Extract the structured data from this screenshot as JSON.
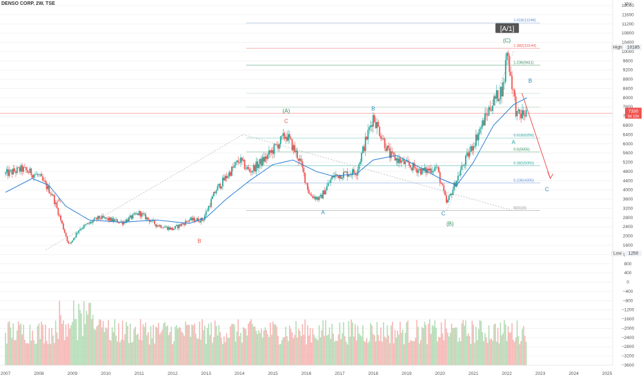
{
  "header": {
    "symbol_line": "DENSO CORP, 2W, TSE",
    "currency": "JPY"
  },
  "badges": {
    "high_label": "High",
    "high_value": "10185",
    "low_label": "Low",
    "low_value": "1250",
    "last_price": "7330",
    "last_time": "9d 10h"
  },
  "colors": {
    "up": "#26a69a",
    "down": "#ef5350",
    "ma": "#2a7fd4",
    "red": "#ef5350",
    "green": "#2e8b57",
    "blue": "#2a8cb8"
  },
  "chart_data": {
    "type": "candlestick",
    "price_axis": {
      "min": -3600,
      "max": 12000,
      "ticks": [
        12000,
        11600,
        11200,
        10800,
        10400,
        10000,
        9600,
        9200,
        8800,
        8400,
        8000,
        7600,
        7200,
        6800,
        6400,
        6000,
        5600,
        5200,
        4800,
        4400,
        4000,
        3600,
        3200,
        2800,
        2400,
        2000,
        1600,
        1200,
        800,
        400,
        0,
        -400,
        -800,
        -1200,
        -1600,
        -2000,
        -2400,
        -2800,
        -3200,
        -3600
      ]
    },
    "time_axis": {
      "labels": [
        "2007",
        "2008",
        "2009",
        "2010",
        "2011",
        "2012",
        "2013",
        "2014",
        "2015",
        "2016",
        "2017",
        "2018",
        "2019",
        "2020",
        "2021",
        "2022",
        "2023",
        "2024",
        "2025"
      ]
    },
    "price_path": [
      [
        2007.0,
        4700
      ],
      [
        2007.5,
        4900
      ],
      [
        2008.0,
        4600
      ],
      [
        2008.4,
        3800
      ],
      [
        2008.9,
        1600
      ],
      [
        2009.2,
        2300
      ],
      [
        2009.8,
        2800
      ],
      [
        2010.5,
        2600
      ],
      [
        2011.0,
        3000
      ],
      [
        2011.5,
        2500
      ],
      [
        2012.0,
        2300
      ],
      [
        2012.5,
        2700
      ],
      [
        2012.9,
        2700
      ],
      [
        2013.3,
        4000
      ],
      [
        2014.0,
        5300
      ],
      [
        2014.3,
        4800
      ],
      [
        2014.8,
        5400
      ],
      [
        2015.4,
        6400
      ],
      [
        2015.8,
        5300
      ],
      [
        2016.1,
        3800
      ],
      [
        2016.4,
        3600
      ],
      [
        2016.8,
        4600
      ],
      [
        2017.5,
        4800
      ],
      [
        2018.0,
        7200
      ],
      [
        2018.5,
        5500
      ],
      [
        2019.0,
        5100
      ],
      [
        2019.5,
        4800
      ],
      [
        2019.9,
        5000
      ],
      [
        2020.2,
        3400
      ],
      [
        2020.6,
        4800
      ],
      [
        2021.0,
        6000
      ],
      [
        2021.5,
        7600
      ],
      [
        2021.9,
        8500
      ],
      [
        2022.0,
        10100
      ],
      [
        2022.3,
        7200
      ],
      [
        2022.6,
        7330
      ]
    ],
    "ma_path": [
      [
        2007.0,
        3900
      ],
      [
        2007.8,
        4500
      ],
      [
        2008.3,
        4200
      ],
      [
        2008.8,
        3300
      ],
      [
        2009.5,
        2700
      ],
      [
        2010.5,
        2600
      ],
      [
        2011.5,
        2700
      ],
      [
        2012.5,
        2550
      ],
      [
        2013.0,
        2800
      ],
      [
        2013.6,
        3600
      ],
      [
        2014.3,
        4400
      ],
      [
        2015.0,
        5100
      ],
      [
        2015.6,
        5300
      ],
      [
        2016.3,
        4800
      ],
      [
        2016.8,
        4600
      ],
      [
        2017.5,
        4700
      ],
      [
        2018.0,
        5300
      ],
      [
        2018.7,
        5500
      ],
      [
        2019.5,
        4900
      ],
      [
        2020.0,
        4500
      ],
      [
        2020.5,
        4200
      ],
      [
        2021.0,
        5200
      ],
      [
        2021.6,
        6800
      ],
      [
        2022.2,
        7700
      ],
      [
        2022.6,
        8000
      ]
    ],
    "volume_base": -3600,
    "fib_levels": [
      {
        "label": "1.618(11248)",
        "price": 11248,
        "color": "#5b8dd6"
      },
      {
        "label": "1.382(10144)",
        "price": 10144,
        "color": "#ef5350"
      },
      {
        "label": "1.236(9411)",
        "price": 9411,
        "color": "#2e8b57"
      },
      {
        "label": "0.618(6256)",
        "price": 6256,
        "color": "#26a69a"
      },
      {
        "label": "0.5(5655)",
        "price": 5655,
        "color": "#2e8b57"
      },
      {
        "label": "0.382(5055)",
        "price": 5055,
        "color": "#26a69a"
      },
      {
        "label": "0.236(4305)",
        "price": 4305,
        "color": "#5b8dd6"
      },
      {
        "label": "0(3110)",
        "price": 3110,
        "color": "#888888"
      }
    ],
    "fib_levels_extra": [
      8200,
      7600
    ],
    "wave_labels": [
      {
        "text": "A",
        "t": 2008.6,
        "price": 3450,
        "color": "#ef5350"
      },
      {
        "text": "B",
        "t": 2012.8,
        "price": 1700,
        "color": "#ef5350"
      },
      {
        "text": "C",
        "t": 2015.4,
        "price": 6900,
        "color": "#ef5350"
      },
      {
        "text": "(A)",
        "t": 2015.4,
        "price": 7350,
        "color": "#2e8b57"
      },
      {
        "text": "B",
        "t": 2018.0,
        "price": 7450,
        "color": "#2a8cb8"
      },
      {
        "text": "A",
        "t": 2016.5,
        "price": 2950,
        "color": "#2a8cb8"
      },
      {
        "text": "C",
        "t": 2020.1,
        "price": 2900,
        "color": "#2a8cb8"
      },
      {
        "text": "(B)",
        "t": 2020.3,
        "price": 2450,
        "color": "#2e8b57"
      },
      {
        "text": "(C)",
        "t": 2022.0,
        "price": 10400,
        "color": "#2e8b57"
      },
      {
        "text": "B",
        "t": 2022.7,
        "price": 8650,
        "color": "#2a8cb8"
      },
      {
        "text": "A",
        "t": 2022.2,
        "price": 6000,
        "color": "#26a69a"
      },
      {
        "text": "C",
        "t": 2023.2,
        "price": 3950,
        "color": "#2a8cb8"
      }
    ],
    "title_box": "[A/1]",
    "last_price": 7330
  }
}
